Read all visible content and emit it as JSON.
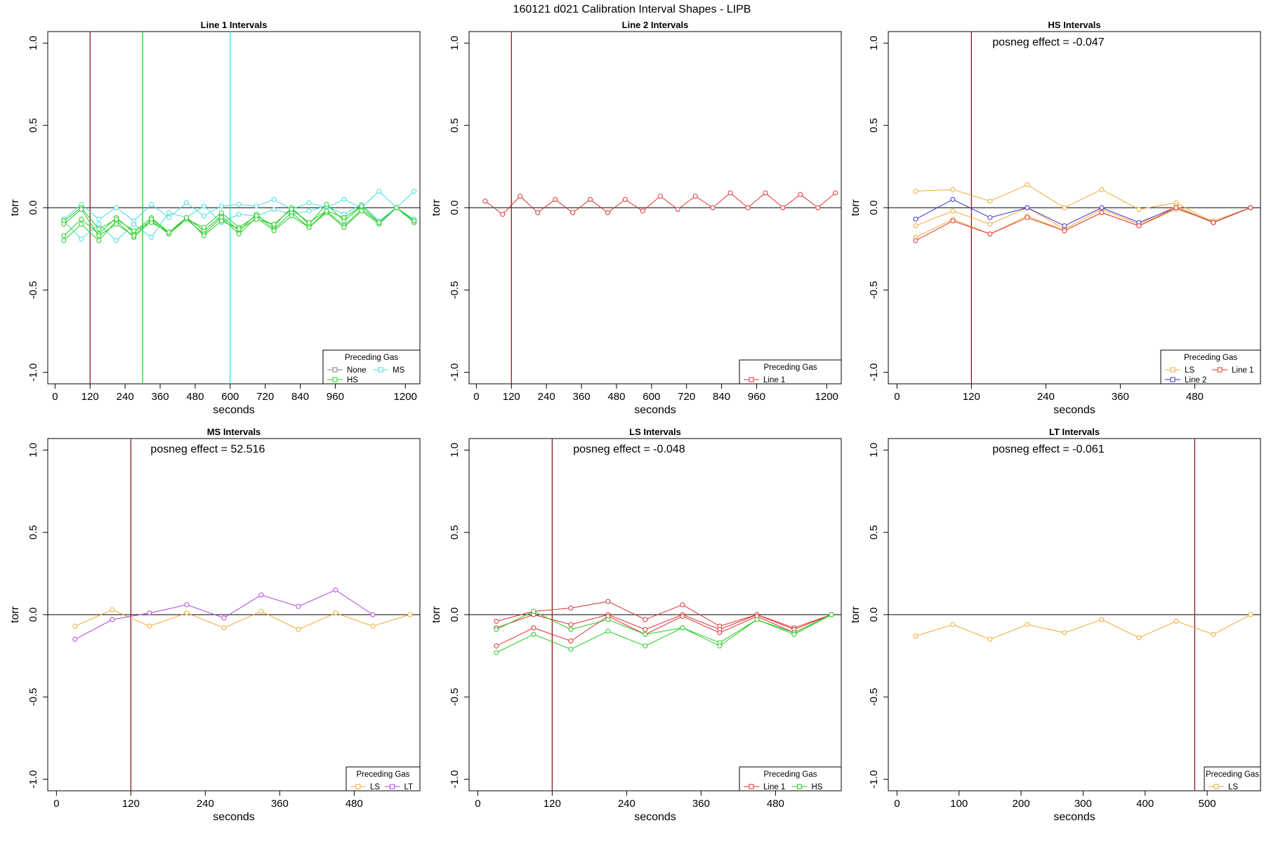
{
  "figure_title": "160121   d021   Calibration Interval Shapes - LIPB",
  "colors": {
    "None": "#808080",
    "HS": "#22cc22",
    "MS": "#44dddd",
    "Line 1": "#e03030",
    "LS": "#f0a830",
    "Line 2": "#3333cc",
    "LT": "#b040e0",
    "vline": "#8b1a1a",
    "zero": "#000000"
  },
  "chart_data": [
    {
      "type": "line",
      "title": "Line 1 Intervals",
      "xlabel": "seconds",
      "ylabel": "torr",
      "xlim": [
        -25,
        1250
      ],
      "ylim": [
        -1.07,
        1.07
      ],
      "xticks": [
        0,
        120,
        240,
        360,
        480,
        600,
        720,
        840,
        960,
        1200
      ],
      "yticks": [
        -1.0,
        -0.5,
        0.0,
        0.5,
        1.0
      ],
      "ytick_labels": [
        "-1.0",
        "-0.5",
        "0.0",
        "0.5",
        "1.0"
      ],
      "vlines": [
        {
          "x": 120,
          "color": "vline"
        },
        {
          "x": 300,
          "color": "HS"
        },
        {
          "x": 600,
          "color": "MS"
        }
      ],
      "annotation": "",
      "legend": {
        "title": "Preceding Gas",
        "rows": [
          [
            "None",
            "MS"
          ],
          [
            "HS"
          ]
        ]
      },
      "series": [
        {
          "name": "MS",
          "color": "MS",
          "x": [
            30,
            90,
            150,
            210,
            270,
            330,
            390,
            450,
            510,
            570,
            630,
            690,
            750,
            810,
            870,
            930,
            990,
            1050,
            1110,
            1170,
            1230
          ],
          "y": [
            -0.07,
            0.02,
            -0.07,
            0.0,
            -0.08,
            0.02,
            -0.06,
            0.03,
            -0.05,
            0.01,
            0.02,
            0.01,
            0.05,
            -0.01,
            0.03,
            0.0,
            0.05,
            0.0,
            0.1,
            0.0,
            0.1
          ]
        },
        {
          "name": "MS",
          "color": "MS",
          "x": [
            30,
            90,
            150,
            210,
            270,
            330,
            390,
            450,
            510,
            570,
            630,
            690,
            750,
            810,
            870,
            930,
            990,
            1050,
            1110,
            1170,
            1230
          ],
          "y": [
            -0.08,
            -0.19,
            -0.1,
            -0.2,
            -0.1,
            -0.18,
            -0.03,
            -0.06,
            0.01,
            -0.09,
            -0.04,
            -0.05,
            -0.01,
            -0.04,
            -0.02,
            0.01,
            -0.04,
            0.02,
            -0.08,
            0.0,
            -0.07
          ]
        },
        {
          "name": "HS",
          "color": "HS",
          "x": [
            30,
            90,
            150,
            210,
            270,
            330,
            390,
            450,
            510,
            570,
            630,
            690,
            750,
            810,
            870,
            930,
            990,
            1050,
            1110,
            1170,
            1230
          ],
          "y": [
            -0.17,
            -0.07,
            -0.16,
            -0.06,
            -0.15,
            -0.06,
            -0.15,
            -0.06,
            -0.14,
            -0.05,
            -0.14,
            -0.04,
            -0.13,
            -0.03,
            -0.12,
            -0.02,
            -0.11,
            -0.01,
            -0.09,
            0.0,
            -0.08
          ]
        },
        {
          "name": "HS",
          "color": "HS",
          "x": [
            30,
            90,
            150,
            210,
            270,
            330,
            390,
            450,
            510,
            570,
            630,
            690,
            750,
            810,
            870,
            930,
            990,
            1050,
            1110,
            1170,
            1230
          ],
          "y": [
            -0.2,
            -0.1,
            -0.2,
            -0.08,
            -0.18,
            -0.08,
            -0.16,
            -0.07,
            -0.16,
            -0.06,
            -0.16,
            -0.06,
            -0.14,
            -0.05,
            -0.12,
            -0.03,
            -0.12,
            -0.02,
            -0.1,
            0.0,
            -0.09
          ]
        },
        {
          "name": "HS",
          "color": "HS",
          "x": [
            30,
            90,
            150,
            210,
            270,
            330,
            390,
            450,
            510,
            570,
            630,
            690,
            750,
            810,
            870,
            930,
            990,
            1050,
            1110,
            1170,
            1230
          ],
          "y": [
            -0.08,
            0.0,
            -0.13,
            -0.07,
            -0.14,
            -0.09,
            -0.15,
            -0.07,
            -0.12,
            -0.03,
            -0.12,
            -0.05,
            -0.11,
            0.0,
            -0.1,
            0.02,
            -0.08,
            0.01,
            -0.09,
            0.0,
            -0.08
          ]
        },
        {
          "name": "HS",
          "color": "HS",
          "x": [
            30,
            90,
            150,
            210,
            270,
            330,
            390,
            450,
            510,
            570,
            630,
            690,
            750,
            810,
            870,
            930,
            990,
            1050,
            1110,
            1170,
            1230
          ],
          "y": [
            -0.1,
            -0.01,
            -0.17,
            -0.1,
            -0.17,
            -0.07,
            -0.15,
            -0.06,
            -0.17,
            -0.08,
            -0.13,
            -0.07,
            -0.1,
            -0.01,
            -0.09,
            -0.02,
            -0.06,
            0.01,
            -0.09,
            0.0,
            -0.08
          ]
        }
      ]
    },
    {
      "type": "line",
      "title": "Line 2 Intervals",
      "xlabel": "seconds",
      "ylabel": "torr",
      "xlim": [
        -25,
        1250
      ],
      "ylim": [
        -1.07,
        1.07
      ],
      "xticks": [
        0,
        120,
        240,
        360,
        480,
        600,
        720,
        840,
        960,
        1200
      ],
      "yticks": [
        -1.0,
        -0.5,
        0.0,
        0.5,
        1.0
      ],
      "ytick_labels": [
        "-1.0",
        "-0.5",
        "0.0",
        "0.5",
        "1.0"
      ],
      "vlines": [
        {
          "x": 120,
          "color": "vline"
        }
      ],
      "annotation": "",
      "legend": {
        "title": "Preceding Gas",
        "rows": [
          [
            "Line 1"
          ]
        ]
      },
      "series": [
        {
          "name": "Line 1",
          "color": "Line 1",
          "x": [
            30,
            90,
            150,
            210,
            270,
            330,
            390,
            450,
            510,
            570,
            630,
            690,
            750,
            810,
            870,
            930,
            990,
            1050,
            1110,
            1170,
            1230
          ],
          "y": [
            0.04,
            -0.04,
            0.07,
            -0.03,
            0.05,
            -0.03,
            0.05,
            -0.03,
            0.05,
            -0.02,
            0.07,
            -0.01,
            0.07,
            0.0,
            0.09,
            0.0,
            0.09,
            0.0,
            0.08,
            0.0,
            0.09
          ]
        }
      ]
    },
    {
      "type": "line",
      "title": "HS Intervals",
      "xlabel": "seconds",
      "ylabel": "torr",
      "xlim": [
        -14,
        586
      ],
      "ylim": [
        -1.07,
        1.07
      ],
      "xticks": [
        0,
        120,
        240,
        360,
        480
      ],
      "yticks": [
        -1.0,
        -0.5,
        0.0,
        0.5,
        1.0
      ],
      "ytick_labels": [
        "-1.0",
        "-0.5",
        "0.0",
        "0.5",
        "1.0"
      ],
      "vlines": [
        {
          "x": 120,
          "color": "vline"
        }
      ],
      "annotation": "posneg effect = -0.047",
      "legend": {
        "title": "Preceding Gas",
        "rows": [
          [
            "LS",
            "Line 1"
          ],
          [
            "Line 2"
          ]
        ]
      },
      "series": [
        {
          "name": "LS",
          "color": "LS",
          "x": [
            30,
            90,
            150,
            210,
            270,
            330,
            390,
            450,
            510,
            570
          ],
          "y": [
            0.1,
            0.11,
            0.04,
            0.14,
            0.0,
            0.11,
            -0.01,
            0.03,
            -0.09,
            0.0
          ]
        },
        {
          "name": "LS",
          "color": "LS",
          "x": [
            30,
            90,
            150,
            210,
            270,
            330,
            390,
            450,
            510,
            570
          ],
          "y": [
            -0.11,
            -0.02,
            -0.1,
            0.0,
            -0.13,
            -0.01,
            -0.1,
            0.01,
            -0.09,
            0.0
          ]
        },
        {
          "name": "LS",
          "color": "LS",
          "x": [
            30,
            90,
            150,
            210,
            270,
            330,
            390,
            450,
            510,
            570
          ],
          "y": [
            -0.18,
            -0.07,
            -0.16,
            -0.05,
            -0.14,
            -0.03,
            -0.11,
            -0.01,
            -0.08,
            0.0
          ]
        },
        {
          "name": "Line 2",
          "color": "Line 2",
          "x": [
            30,
            90,
            150,
            210,
            270,
            330,
            390,
            450,
            510,
            570
          ],
          "y": [
            -0.07,
            0.05,
            -0.06,
            0.0,
            -0.11,
            0.0,
            -0.09,
            0.0,
            -0.09,
            0.0
          ]
        },
        {
          "name": "Line 1",
          "color": "Line 1",
          "x": [
            30,
            90,
            150,
            210,
            270,
            330,
            390,
            450,
            510,
            570
          ],
          "y": [
            -0.2,
            -0.08,
            -0.16,
            -0.06,
            -0.14,
            -0.03,
            -0.11,
            0.0,
            -0.09,
            0.0
          ]
        }
      ]
    },
    {
      "type": "line",
      "title": "MS Intervals",
      "xlabel": "seconds",
      "ylabel": "torr",
      "xlim": [
        -14,
        586
      ],
      "ylim": [
        -1.07,
        1.07
      ],
      "xticks": [
        0,
        120,
        240,
        360,
        480
      ],
      "yticks": [
        -1.0,
        -0.5,
        0.0,
        0.5,
        1.0
      ],
      "ytick_labels": [
        "-1.0",
        "-0.5",
        "0.0",
        "0.5",
        "1.0"
      ],
      "vlines": [
        {
          "x": 120,
          "color": "vline"
        }
      ],
      "annotation": "posneg effect = 52.516",
      "legend": {
        "title": "Preceding Gas",
        "rows": [
          [
            "LS",
            "LT"
          ]
        ]
      },
      "series": [
        {
          "name": "LS",
          "color": "LS",
          "x": [
            30,
            90,
            150,
            210,
            270,
            330,
            390,
            450,
            510,
            570
          ],
          "y": [
            -0.07,
            0.03,
            -0.07,
            0.01,
            -0.08,
            0.02,
            -0.09,
            0.01,
            -0.07,
            0.0
          ]
        },
        {
          "name": "LT",
          "color": "LT",
          "x": [
            30,
            90,
            150,
            210,
            270,
            330,
            390,
            450,
            510
          ],
          "y": [
            -0.15,
            -0.03,
            0.01,
            0.06,
            -0.02,
            0.12,
            0.05,
            0.15,
            0.0
          ]
        }
      ]
    },
    {
      "type": "line",
      "title": "LS Intervals",
      "xlabel": "seconds",
      "ylabel": "torr",
      "xlim": [
        -14,
        586
      ],
      "ylim": [
        -1.07,
        1.07
      ],
      "xticks": [
        0,
        120,
        240,
        360,
        480
      ],
      "yticks": [
        -1.0,
        -0.5,
        0.0,
        0.5,
        1.0
      ],
      "ytick_labels": [
        "-1.0",
        "-0.5",
        "0.0",
        "0.5",
        "1.0"
      ],
      "vlines": [
        {
          "x": 120,
          "color": "vline"
        }
      ],
      "annotation": "posneg effect = -0.048",
      "legend": {
        "title": "Preceding Gas",
        "rows": [
          [
            "Line 1",
            "HS"
          ]
        ]
      },
      "series": [
        {
          "name": "Line 1",
          "color": "Line 1",
          "x": [
            30,
            90,
            150,
            210,
            270,
            330,
            390,
            450,
            510,
            570
          ],
          "y": [
            -0.04,
            0.02,
            0.04,
            0.08,
            -0.03,
            0.06,
            -0.07,
            0.0,
            -0.08,
            0.0
          ]
        },
        {
          "name": "Line 1",
          "color": "Line 1",
          "x": [
            30,
            90,
            150,
            210,
            270,
            330,
            390,
            450,
            510,
            570
          ],
          "y": [
            -0.08,
            0.0,
            -0.06,
            0.0,
            -0.09,
            0.0,
            -0.09,
            0.0,
            -0.09,
            0.0
          ]
        },
        {
          "name": "Line 1",
          "color": "Line 1",
          "x": [
            30,
            90,
            150,
            210,
            270,
            330,
            390,
            450,
            510,
            570
          ],
          "y": [
            -0.19,
            -0.08,
            -0.16,
            -0.01,
            -0.12,
            -0.01,
            -0.11,
            -0.01,
            -0.11,
            0.0
          ]
        },
        {
          "name": "HS",
          "color": "HS",
          "x": [
            30,
            90,
            150,
            210,
            270,
            330,
            390,
            450,
            510,
            570
          ],
          "y": [
            -0.09,
            0.02,
            -0.09,
            -0.03,
            -0.12,
            -0.08,
            -0.17,
            -0.03,
            -0.11,
            0.0
          ]
        },
        {
          "name": "HS",
          "color": "HS",
          "x": [
            30,
            90,
            150,
            210,
            270,
            330,
            390,
            450,
            510,
            570
          ],
          "y": [
            -0.23,
            -0.12,
            -0.21,
            -0.1,
            -0.19,
            -0.08,
            -0.19,
            -0.03,
            -0.12,
            0.0
          ]
        }
      ]
    },
    {
      "type": "line",
      "title": "LT Intervals",
      "xlabel": "seconds",
      "ylabel": "torr",
      "xlim": [
        -14,
        586
      ],
      "ylim": [
        -1.07,
        1.07
      ],
      "xticks": [
        0,
        100,
        200,
        300,
        400,
        500
      ],
      "yticks": [
        -1.0,
        -0.5,
        0.0,
        0.5,
        1.0
      ],
      "ytick_labels": [
        "-1.0",
        "-0.5",
        "0.0",
        "0.5",
        "1.0"
      ],
      "vlines": [
        {
          "x": 480,
          "color": "vline"
        }
      ],
      "annotation": "posneg effect = -0.061",
      "legend": {
        "title": "Preceding Gas",
        "rows": [
          [
            "LS"
          ]
        ]
      },
      "series": [
        {
          "name": "LS",
          "color": "LS",
          "x": [
            30,
            90,
            150,
            210,
            270,
            330,
            390,
            450,
            510,
            570
          ],
          "y": [
            -0.13,
            -0.06,
            -0.15,
            -0.06,
            -0.11,
            -0.03,
            -0.14,
            -0.04,
            -0.12,
            0.0
          ]
        }
      ]
    }
  ]
}
